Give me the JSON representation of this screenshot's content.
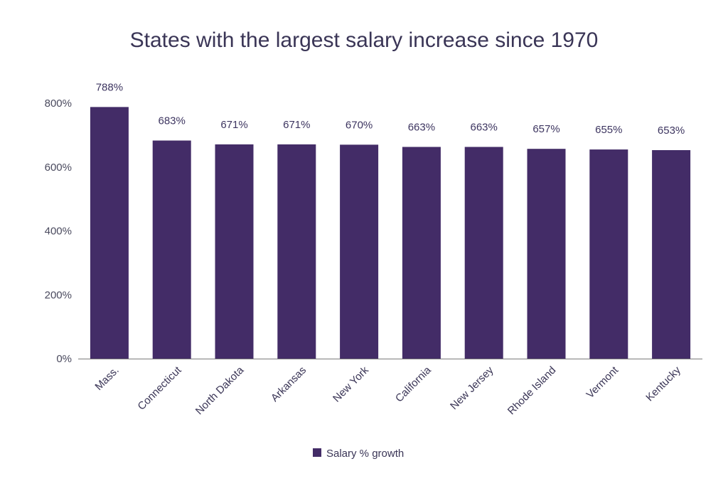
{
  "chart_data": {
    "type": "bar",
    "title": "States with the largest salary increase since 1970",
    "categories": [
      "Mass.",
      "Connecticut",
      "North Dakota",
      "Arkansas",
      "New York",
      "California",
      "New Jersey",
      "Rhode Island",
      "Vermont",
      "Kentucky"
    ],
    "series": [
      {
        "name": "Salary % growth",
        "values": [
          788,
          683,
          671,
          671,
          670,
          663,
          663,
          657,
          655,
          653
        ],
        "labels": [
          "788%",
          "683%",
          "671%",
          "671%",
          "670%",
          "663%",
          "663%",
          "657%",
          "655%",
          "653%"
        ],
        "color": "#432c67"
      }
    ],
    "ylim": [
      0,
      800
    ],
    "yticks": [
      0,
      200,
      400,
      600,
      800
    ],
    "ytick_labels": [
      "0%",
      "200%",
      "400%",
      "600%",
      "800%"
    ],
    "xlabel": "",
    "ylabel": "",
    "grid": false,
    "legend_position": "bottom"
  }
}
